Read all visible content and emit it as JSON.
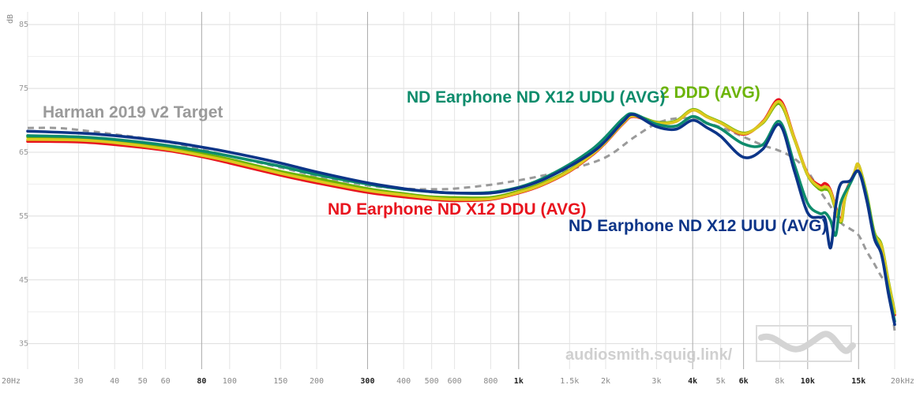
{
  "chart_data": {
    "type": "line",
    "x_scale": "log",
    "xlim": [
      20,
      20000
    ],
    "ylim": [
      31,
      87
    ],
    "y_unit": "dB",
    "y_ticks": [
      35,
      45,
      55,
      65,
      75,
      85
    ],
    "x_ticks": [
      {
        "v": 20,
        "label": "20Hz",
        "major": false
      },
      {
        "v": 30,
        "label": "30",
        "major": false
      },
      {
        "v": 40,
        "label": "40",
        "major": false
      },
      {
        "v": 50,
        "label": "50",
        "major": false
      },
      {
        "v": 60,
        "label": "60",
        "major": false
      },
      {
        "v": 80,
        "label": "80",
        "major": true
      },
      {
        "v": 100,
        "label": "100",
        "major": false
      },
      {
        "v": 150,
        "label": "150",
        "major": false
      },
      {
        "v": 200,
        "label": "200",
        "major": false
      },
      {
        "v": 300,
        "label": "300",
        "major": true
      },
      {
        "v": 400,
        "label": "400",
        "major": false
      },
      {
        "v": 500,
        "label": "500",
        "major": false
      },
      {
        "v": 600,
        "label": "600",
        "major": false
      },
      {
        "v": 800,
        "label": "800",
        "major": false
      },
      {
        "v": 1000,
        "label": "1k",
        "major": true
      },
      {
        "v": 1500,
        "label": "1.5k",
        "major": false
      },
      {
        "v": 2000,
        "label": "2k",
        "major": false
      },
      {
        "v": 3000,
        "label": "3k",
        "major": false
      },
      {
        "v": 4000,
        "label": "4k",
        "major": true
      },
      {
        "v": 5000,
        "label": "5k",
        "major": false
      },
      {
        "v": 6000,
        "label": "6k",
        "major": true
      },
      {
        "v": 8000,
        "label": "8k",
        "major": false
      },
      {
        "v": 10000,
        "label": "10k",
        "major": true
      },
      {
        "v": 15000,
        "label": "15k",
        "major": true
      },
      {
        "v": 20000,
        "label": "20kHz",
        "major": false
      }
    ],
    "series": [
      {
        "name": "Harman 2019 v2 Target",
        "color": "#9a9a9a",
        "dashed": true,
        "points": [
          [
            20,
            68.8
          ],
          [
            25,
            68.8
          ],
          [
            30,
            68.5
          ],
          [
            40,
            67.8
          ],
          [
            60,
            66.7
          ],
          [
            80,
            65.4
          ],
          [
            100,
            64.4
          ],
          [
            150,
            62.6
          ],
          [
            200,
            61.3
          ],
          [
            300,
            59.8
          ],
          [
            400,
            59.3
          ],
          [
            500,
            59.2
          ],
          [
            600,
            59.3
          ],
          [
            800,
            59.9
          ],
          [
            1000,
            60.6
          ],
          [
            1200,
            61.3
          ],
          [
            1500,
            62.3
          ],
          [
            2000,
            64.2
          ],
          [
            2500,
            67.3
          ],
          [
            3000,
            69.5
          ],
          [
            3500,
            70.3
          ],
          [
            4000,
            70.2
          ],
          [
            5000,
            68.9
          ],
          [
            6000,
            67.4
          ],
          [
            7000,
            66.1
          ],
          [
            8000,
            65.2
          ],
          [
            9000,
            64.0
          ],
          [
            10000,
            62.0
          ],
          [
            11000,
            59.0
          ],
          [
            12000,
            56.5
          ],
          [
            13000,
            54.0
          ],
          [
            14000,
            53.0
          ],
          [
            15000,
            52.0
          ],
          [
            16000,
            49.5
          ],
          [
            17000,
            47.5
          ],
          [
            18000,
            45.5
          ],
          [
            19000,
            44.0
          ],
          [
            20000,
            37.0
          ]
        ]
      },
      {
        "name": "ND Earphone ND X12 DDU (AVG)",
        "color": "#e8141e",
        "dashed": false,
        "points": [
          [
            20,
            66.7
          ],
          [
            30,
            66.6
          ],
          [
            40,
            66.2
          ],
          [
            60,
            65.3
          ],
          [
            80,
            64.3
          ],
          [
            100,
            63.3
          ],
          [
            150,
            61.4
          ],
          [
            200,
            60.2
          ],
          [
            300,
            58.7
          ],
          [
            400,
            58.0
          ],
          [
            500,
            57.6
          ],
          [
            600,
            57.4
          ],
          [
            800,
            57.6
          ],
          [
            1000,
            58.6
          ],
          [
            1200,
            59.8
          ],
          [
            1500,
            62.0
          ],
          [
            1800,
            64.6
          ],
          [
            2000,
            66.5
          ],
          [
            2300,
            69.5
          ],
          [
            2500,
            70.6
          ],
          [
            3000,
            69.6
          ],
          [
            3500,
            69.8
          ],
          [
            4000,
            71.6
          ],
          [
            4500,
            70.5
          ],
          [
            5000,
            69.6
          ],
          [
            6000,
            67.8
          ],
          [
            7000,
            69.8
          ],
          [
            8000,
            73.2
          ],
          [
            9000,
            67.2
          ],
          [
            10000,
            61.6
          ],
          [
            11000,
            59.8
          ],
          [
            11500,
            60.1
          ],
          [
            12000,
            59.0
          ],
          [
            13000,
            54.5
          ],
          [
            13500,
            58.5
          ],
          [
            14500,
            61.7
          ],
          [
            15000,
            63.0
          ],
          [
            16000,
            58.0
          ],
          [
            17000,
            52.0
          ],
          [
            18000,
            50.0
          ],
          [
            19000,
            44.5
          ],
          [
            20000,
            39.5
          ]
        ]
      },
      {
        "name": "2 DDD (AVG)",
        "color": "#6cb406",
        "dashed": false,
        "points": [
          [
            20,
            67.4
          ],
          [
            30,
            67.2
          ],
          [
            40,
            66.8
          ],
          [
            60,
            65.8
          ],
          [
            80,
            64.8
          ],
          [
            100,
            63.9
          ],
          [
            150,
            62.0
          ],
          [
            200,
            60.9
          ],
          [
            300,
            59.3
          ],
          [
            400,
            58.5
          ],
          [
            500,
            58.0
          ],
          [
            600,
            57.9
          ],
          [
            800,
            57.9
          ],
          [
            1000,
            58.9
          ],
          [
            1200,
            60.1
          ],
          [
            1500,
            62.2
          ],
          [
            1800,
            64.8
          ],
          [
            2000,
            66.7
          ],
          [
            2300,
            69.7
          ],
          [
            2500,
            70.8
          ],
          [
            3000,
            69.7
          ],
          [
            3500,
            69.9
          ],
          [
            4000,
            71.7
          ],
          [
            4500,
            70.6
          ],
          [
            5000,
            69.7
          ],
          [
            6000,
            68.0
          ],
          [
            7000,
            69.6
          ],
          [
            8000,
            72.6
          ],
          [
            9000,
            67.0
          ],
          [
            10000,
            61.4
          ],
          [
            11000,
            59.2
          ],
          [
            11500,
            59.2
          ],
          [
            12000,
            58.5
          ],
          [
            13000,
            54.0
          ],
          [
            13500,
            58.0
          ],
          [
            14500,
            61.8
          ],
          [
            15000,
            63.0
          ],
          [
            16000,
            58.5
          ],
          [
            17000,
            52.5
          ],
          [
            18000,
            50.5
          ],
          [
            19000,
            45.0
          ],
          [
            20000,
            40.0
          ]
        ]
      },
      {
        "name": "yellow",
        "color": "#dcc81e",
        "dashed": false,
        "points": [
          [
            20,
            67.0
          ],
          [
            30,
            66.9
          ],
          [
            40,
            66.5
          ],
          [
            60,
            65.5
          ],
          [
            80,
            64.5
          ],
          [
            100,
            63.6
          ],
          [
            150,
            61.7
          ],
          [
            200,
            60.5
          ],
          [
            300,
            59.0
          ],
          [
            400,
            58.3
          ],
          [
            500,
            57.8
          ],
          [
            600,
            57.6
          ],
          [
            800,
            57.7
          ],
          [
            1000,
            58.7
          ],
          [
            1200,
            59.9
          ],
          [
            1500,
            62.1
          ],
          [
            1800,
            64.7
          ],
          [
            2000,
            66.6
          ],
          [
            2300,
            69.6
          ],
          [
            2500,
            70.7
          ],
          [
            3000,
            69.6
          ],
          [
            3500,
            69.8
          ],
          [
            4000,
            71.6
          ],
          [
            4500,
            70.5
          ],
          [
            5000,
            69.6
          ],
          [
            6000,
            67.9
          ],
          [
            7000,
            69.7
          ],
          [
            8000,
            72.9
          ],
          [
            9000,
            67.1
          ],
          [
            10000,
            61.5
          ],
          [
            11000,
            59.5
          ],
          [
            11500,
            59.6
          ],
          [
            12000,
            58.8
          ],
          [
            13000,
            54.2
          ],
          [
            13500,
            58.2
          ],
          [
            14500,
            61.8
          ],
          [
            15000,
            63.0
          ],
          [
            16000,
            58.3
          ],
          [
            17000,
            52.3
          ],
          [
            18000,
            50.3
          ],
          [
            19000,
            44.8
          ],
          [
            20000,
            39.8
          ]
        ]
      },
      {
        "name": "ND Earphone ND X12 UDU (AVG)",
        "color": "#0e8c6c",
        "dashed": false,
        "points": [
          [
            20,
            67.6
          ],
          [
            30,
            67.4
          ],
          [
            40,
            67.0
          ],
          [
            60,
            66.1
          ],
          [
            80,
            65.2
          ],
          [
            100,
            64.4
          ],
          [
            150,
            62.8
          ],
          [
            200,
            61.5
          ],
          [
            300,
            60.0
          ],
          [
            400,
            59.2
          ],
          [
            500,
            58.8
          ],
          [
            600,
            58.6
          ],
          [
            800,
            58.7
          ],
          [
            1000,
            59.5
          ],
          [
            1200,
            60.8
          ],
          [
            1500,
            63.1
          ],
          [
            1800,
            65.5
          ],
          [
            2000,
            67.4
          ],
          [
            2300,
            70.3
          ],
          [
            2500,
            71.0
          ],
          [
            3000,
            69.4
          ],
          [
            3500,
            69.1
          ],
          [
            4000,
            70.6
          ],
          [
            4500,
            69.5
          ],
          [
            5000,
            68.7
          ],
          [
            6000,
            66.3
          ],
          [
            7000,
            66.2
          ],
          [
            8000,
            69.8
          ],
          [
            9000,
            63.0
          ],
          [
            10000,
            57.0
          ],
          [
            11000,
            55.4
          ],
          [
            11500,
            55.5
          ],
          [
            12000,
            54.3
          ],
          [
            12500,
            52.0
          ],
          [
            13000,
            57.0
          ],
          [
            14000,
            60.0
          ],
          [
            15000,
            62.0
          ],
          [
            16000,
            58.0
          ],
          [
            17000,
            52.0
          ],
          [
            18000,
            49.0
          ],
          [
            19000,
            43.5
          ],
          [
            20000,
            38.5
          ]
        ]
      },
      {
        "name": "ND Earphone ND X12 UUU (AVG)",
        "color": "#0c3588",
        "dashed": false,
        "points": [
          [
            20,
            68.3
          ],
          [
            30,
            68.0
          ],
          [
            40,
            67.6
          ],
          [
            60,
            66.7
          ],
          [
            80,
            65.8
          ],
          [
            100,
            65.0
          ],
          [
            150,
            63.3
          ],
          [
            200,
            61.9
          ],
          [
            300,
            60.2
          ],
          [
            400,
            59.3
          ],
          [
            500,
            58.8
          ],
          [
            600,
            58.6
          ],
          [
            800,
            58.6
          ],
          [
            1000,
            59.4
          ],
          [
            1200,
            60.6
          ],
          [
            1500,
            62.8
          ],
          [
            1800,
            65.0
          ],
          [
            2000,
            66.8
          ],
          [
            2300,
            69.8
          ],
          [
            2500,
            70.9
          ],
          [
            3000,
            69.0
          ],
          [
            3500,
            68.6
          ],
          [
            4000,
            70.0
          ],
          [
            4500,
            68.8
          ],
          [
            5000,
            67.5
          ],
          [
            6000,
            64.2
          ],
          [
            7000,
            65.5
          ],
          [
            8000,
            69.3
          ],
          [
            9000,
            62.0
          ],
          [
            10000,
            55.5
          ],
          [
            11000,
            54.8
          ],
          [
            11500,
            54.5
          ],
          [
            12000,
            50.0
          ],
          [
            12500,
            56.5
          ],
          [
            13000,
            60.0
          ],
          [
            14000,
            60.5
          ],
          [
            15000,
            62.0
          ],
          [
            16000,
            57.5
          ],
          [
            17000,
            51.5
          ],
          [
            18000,
            49.0
          ],
          [
            19000,
            43.0
          ],
          [
            20000,
            38.0
          ]
        ]
      }
    ],
    "labels": [
      {
        "text": "Harman 2019 v2 Target",
        "color": "#9a9a9a"
      },
      {
        "text": "ND Earphone ND X12 UDU (AVG)",
        "color": "#0e8c6c"
      },
      {
        "text": "2 DDD (AVG)",
        "color": "#6cb406"
      },
      {
        "text": "ND Earphone ND X12 DDU (AVG)",
        "color": "#e8141e"
      },
      {
        "text": "ND Earphone ND X12 UUU (AVG)",
        "color": "#0c3588"
      }
    ]
  },
  "watermark": {
    "text": "audiosmith.squig.link/"
  }
}
